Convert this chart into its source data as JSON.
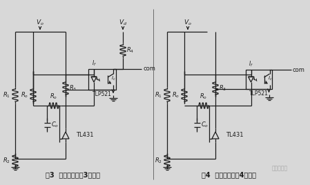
{
  "bg_color": "#d8d8d8",
  "line_color": "#1a1a1a",
  "fig_caption1": "图3  光耦反馈的第3种接法",
  "fig_caption2": "图4  光耦反馈的第4种接法",
  "watermark": "电子发烧友"
}
